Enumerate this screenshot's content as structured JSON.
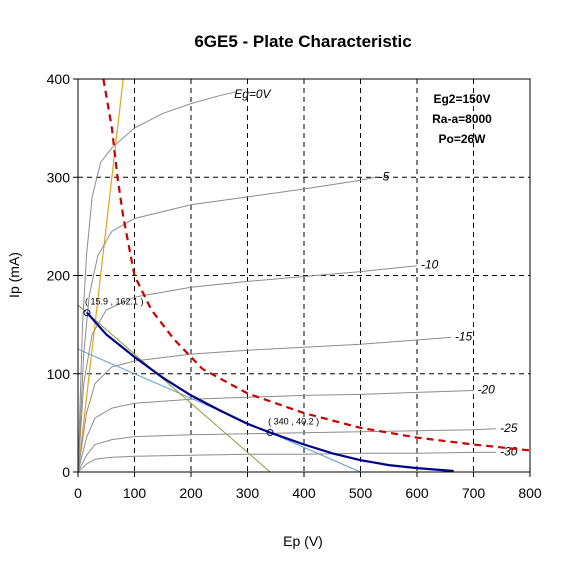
{
  "chart_data": {
    "type": "line",
    "title": "6GE5 - Plate Characteristic",
    "xlabel": "Ep (V)",
    "ylabel": "Ip (mA)",
    "xlim": [
      0,
      800
    ],
    "ylim": [
      0,
      400
    ],
    "x_ticks": [
      0,
      100,
      200,
      300,
      400,
      500,
      600,
      700,
      800
    ],
    "y_ticks": [
      0,
      100,
      200,
      300,
      400
    ],
    "grid": "dashed",
    "info_lines": [
      "Eg2=150V",
      "Ra-a=8000",
      "Po=26W"
    ],
    "colors": {
      "curves": "#8c8c8c",
      "load_line": "#00008b",
      "max_dissipation": "#cc0000",
      "orange_line": "#e8a317",
      "olive_line": "#8a9a3a",
      "light_blue_line": "#5a9fd4"
    },
    "series": [
      {
        "label": "Eg=0V",
        "x": [
          0,
          8,
          15,
          25,
          40,
          60,
          100,
          150,
          200,
          250,
          280
        ],
        "y": [
          0,
          150,
          220,
          280,
          315,
          330,
          350,
          365,
          375,
          383,
          387
        ]
      },
      {
        "label": "-5",
        "x": [
          0,
          10,
          20,
          35,
          60,
          100,
          200,
          300,
          400,
          500,
          525
        ],
        "y": [
          0,
          120,
          180,
          220,
          245,
          258,
          272,
          280,
          288,
          297,
          300
        ]
      },
      {
        "label": "-10",
        "x": [
          0,
          10,
          25,
          50,
          100,
          200,
          300,
          400,
          500,
          600
        ],
        "y": [
          0,
          90,
          140,
          165,
          178,
          188,
          194,
          199,
          204,
          210
        ]
      },
      {
        "label": "-15",
        "x": [
          0,
          15,
          30,
          60,
          100,
          200,
          300,
          400,
          500,
          660
        ],
        "y": [
          0,
          60,
          90,
          107,
          113,
          120,
          124,
          127,
          130,
          137
        ]
      },
      {
        "label": "-20",
        "x": [
          0,
          15,
          30,
          60,
          100,
          200,
          300,
          400,
          500,
          600,
          700
        ],
        "y": [
          0,
          35,
          55,
          65,
          70,
          74,
          76,
          78,
          79,
          81,
          83
        ]
      },
      {
        "label": "-25",
        "x": [
          0,
          15,
          30,
          60,
          100,
          200,
          300,
          400,
          500,
          600,
          700,
          740
        ],
        "y": [
          0,
          17,
          28,
          33,
          36,
          38,
          39,
          40,
          41,
          42,
          43,
          44
        ]
      },
      {
        "label": "-30",
        "x": [
          0,
          15,
          30,
          60,
          100,
          200,
          300,
          400,
          500,
          600,
          700,
          740
        ],
        "y": [
          0,
          8,
          13,
          15,
          16,
          17,
          18,
          18,
          19,
          19,
          20,
          20
        ]
      }
    ],
    "load_line": {
      "x": [
        15.9,
        50,
        100,
        150,
        200,
        250,
        300,
        340,
        400,
        450,
        500,
        550,
        600,
        665
      ],
      "y": [
        162.1,
        140,
        117,
        96,
        78,
        63,
        49,
        40.2,
        28,
        19,
        12,
        7,
        4,
        1
      ]
    },
    "max_dissipation_curve": {
      "x": [
        45,
        60,
        70,
        80,
        100,
        130,
        170,
        220,
        300,
        400,
        500,
        600,
        700,
        800
      ],
      "y": [
        400,
        350,
        300,
        260,
        200,
        165,
        135,
        105,
        80,
        60,
        45,
        35,
        28,
        22
      ]
    },
    "orange_line": {
      "x": [
        0,
        80
      ],
      "y": [
        0,
        400
      ]
    },
    "olive_line": {
      "x": [
        0,
        340
      ],
      "y": [
        170,
        0
      ]
    },
    "light_blue_line": {
      "x": [
        0,
        500
      ],
      "y": [
        125,
        0
      ]
    },
    "operating_points": [
      {
        "x": 15.9,
        "y": 162.1,
        "label": "( 15.9 , 162.1 )"
      },
      {
        "x": 340,
        "y": 40.2,
        "label": "( 340 , 40.2 )"
      }
    ]
  }
}
